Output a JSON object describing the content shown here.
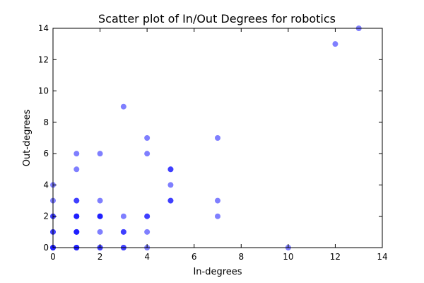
{
  "chart_data": {
    "type": "scatter",
    "title": "Scatter plot of In/Out Degrees for robotics",
    "xlabel": "In-degrees",
    "ylabel": "Out-degrees",
    "xlim": [
      0,
      14
    ],
    "ylim": [
      0,
      14
    ],
    "xticks": [
      "0",
      "2",
      "4",
      "6",
      "8",
      "10",
      "12",
      "14"
    ],
    "yticks": [
      "0",
      "2",
      "4",
      "6",
      "8",
      "10",
      "12",
      "14"
    ],
    "grid": false,
    "point_color": "#0000ff",
    "point_alpha": 0.5,
    "points": [
      {
        "x": 0,
        "y": 0
      },
      {
        "x": 0,
        "y": 0
      },
      {
        "x": 0,
        "y": 0
      },
      {
        "x": 0,
        "y": 1
      },
      {
        "x": 0,
        "y": 1
      },
      {
        "x": 0,
        "y": 2
      },
      {
        "x": 0,
        "y": 2
      },
      {
        "x": 0,
        "y": 3
      },
      {
        "x": 0,
        "y": 4
      },
      {
        "x": 1,
        "y": 0
      },
      {
        "x": 1,
        "y": 0
      },
      {
        "x": 1,
        "y": 0
      },
      {
        "x": 1,
        "y": 1
      },
      {
        "x": 1,
        "y": 1
      },
      {
        "x": 1,
        "y": 1
      },
      {
        "x": 1,
        "y": 2
      },
      {
        "x": 1,
        "y": 2
      },
      {
        "x": 1,
        "y": 2
      },
      {
        "x": 1,
        "y": 3
      },
      {
        "x": 1,
        "y": 3
      },
      {
        "x": 1,
        "y": 5
      },
      {
        "x": 1,
        "y": 6
      },
      {
        "x": 2,
        "y": 0
      },
      {
        "x": 2,
        "y": 0
      },
      {
        "x": 2,
        "y": 1
      },
      {
        "x": 2,
        "y": 2
      },
      {
        "x": 2,
        "y": 2
      },
      {
        "x": 2,
        "y": 2
      },
      {
        "x": 2,
        "y": 3
      },
      {
        "x": 2,
        "y": 6
      },
      {
        "x": 3,
        "y": 0
      },
      {
        "x": 3,
        "y": 0
      },
      {
        "x": 3,
        "y": 1
      },
      {
        "x": 3,
        "y": 1
      },
      {
        "x": 3,
        "y": 2
      },
      {
        "x": 3,
        "y": 9
      },
      {
        "x": 4,
        "y": 0
      },
      {
        "x": 4,
        "y": 1
      },
      {
        "x": 4,
        "y": 2
      },
      {
        "x": 4,
        "y": 2
      },
      {
        "x": 4,
        "y": 6
      },
      {
        "x": 4,
        "y": 7
      },
      {
        "x": 5,
        "y": 3
      },
      {
        "x": 5,
        "y": 3
      },
      {
        "x": 5,
        "y": 4
      },
      {
        "x": 5,
        "y": 5
      },
      {
        "x": 5,
        "y": 5
      },
      {
        "x": 7,
        "y": 2
      },
      {
        "x": 7,
        "y": 3
      },
      {
        "x": 7,
        "y": 7
      },
      {
        "x": 10,
        "y": 0
      },
      {
        "x": 12,
        "y": 13
      },
      {
        "x": 13,
        "y": 14
      }
    ]
  }
}
